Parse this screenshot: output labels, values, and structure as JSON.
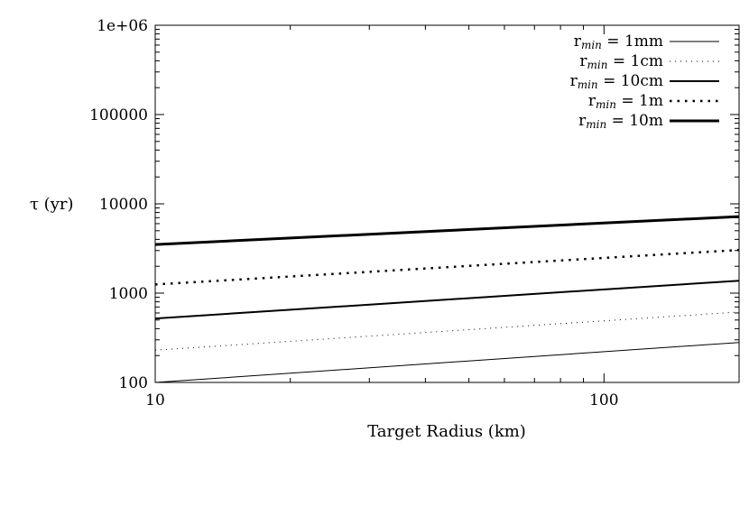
{
  "chart_data": {
    "type": "line",
    "xlabel": "Target Radius (km)",
    "ylabel": "τ (yr)",
    "xscale": "log",
    "yscale": "log",
    "xlim": [
      10,
      200
    ],
    "ylim": [
      100,
      1000000
    ],
    "x_ticks": [
      10,
      100
    ],
    "x_tick_labels": [
      "10",
      "100"
    ],
    "y_ticks": [
      100,
      1000,
      10000,
      100000,
      1000000
    ],
    "y_tick_labels": [
      "100",
      "1000",
      "10000",
      "100000",
      "1e+06"
    ],
    "grid": false,
    "legend_position": "top-right",
    "series": [
      {
        "name_main": "r",
        "name_sub": "min",
        "name_rest": " = 1mm",
        "style": "thin-solid",
        "x": [
          10,
          200
        ],
        "y": [
          100,
          280
        ]
      },
      {
        "name_main": "r",
        "name_sub": "min",
        "name_rest": " = 1cm",
        "style": "thin-dotted",
        "x": [
          10,
          200
        ],
        "y": [
          230,
          615
        ]
      },
      {
        "name_main": "r",
        "name_sub": "min",
        "name_rest": " = 10cm",
        "style": "medium-solid",
        "x": [
          10,
          200
        ],
        "y": [
          520,
          1380
        ]
      },
      {
        "name_main": "r",
        "name_sub": "min",
        "name_rest": " = 1m",
        "style": "medium-dotted",
        "x": [
          10,
          200
        ],
        "y": [
          1250,
          3050
        ]
      },
      {
        "name_main": "r",
        "name_sub": "min",
        "name_rest": " = 10m",
        "style": "thick-solid",
        "x": [
          10,
          200
        ],
        "y": [
          3500,
          7200
        ]
      }
    ]
  }
}
